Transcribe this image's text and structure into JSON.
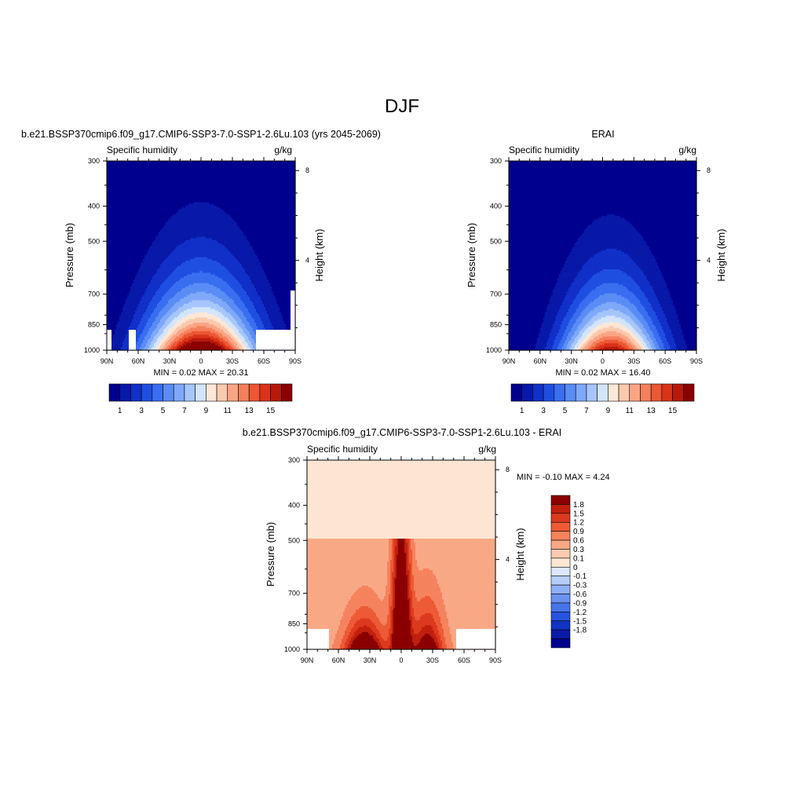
{
  "figure": {
    "title": "DJF"
  },
  "colors": {
    "abs_palette": [
      "#00008f",
      "#0818a8",
      "#1030c8",
      "#1f4fe0",
      "#3a6ef0",
      "#5a8cf5",
      "#7fa9f8",
      "#a6c6fb",
      "#d3e5fc",
      "#fde7d7",
      "#fbc9ad",
      "#f9a585",
      "#f5805c",
      "#ec5734",
      "#d8341a",
      "#b8190b",
      "#8b0000"
    ],
    "diff_palette": [
      "#00008f",
      "#0a1aa6",
      "#1233c2",
      "#2553dc",
      "#4675ea",
      "#6a93f0",
      "#90b0f6",
      "#b6cdfa",
      "#dbe7fc",
      "#fde5d3",
      "#fbcbb0",
      "#f9a886",
      "#f5835e",
      "#ed5a36",
      "#dc3a1e",
      "#c0200d",
      "#8b0000"
    ]
  },
  "chart_data": [
    {
      "id": "model",
      "type": "heatmap",
      "title": "b.e21.BSSP370cmip6.f09_g17.CMIP6-SSP3-7.0-SSP1-2.6Lu.103 (yrs 2045-2069)",
      "left_label": "Specific humidity",
      "right_label": "g/kg",
      "xlabel": "",
      "ylabel": "Pressure (mb)",
      "y2label": "Height (km)",
      "x_ticks": [
        "90N",
        "60N",
        "30N",
        "0",
        "30S",
        "60S",
        "90S"
      ],
      "y_ticks": [
        "300",
        "400",
        "500",
        "700",
        "850",
        "1000"
      ],
      "y2_ticks": [
        "8",
        "4"
      ],
      "ylim": [
        1000,
        300
      ],
      "stats": "MIN =   0.02  MAX =  20.31",
      "min": 0.02,
      "max": 20.31,
      "peak_lat": 0,
      "colorbar_labels": [
        "1",
        "3",
        "5",
        "7",
        "9",
        "11",
        "13",
        "15"
      ],
      "colorbar_levels": [
        1,
        2,
        3,
        4,
        5,
        6,
        7,
        8,
        9,
        10,
        11,
        12,
        13,
        14,
        15,
        16
      ]
    },
    {
      "id": "obs",
      "type": "heatmap",
      "title": "ERAI",
      "left_label": "Specific humidity",
      "right_label": "g/kg",
      "xlabel": "",
      "ylabel": "Pressure (mb)",
      "y2label": "Height (km)",
      "x_ticks": [
        "90N",
        "60N",
        "30N",
        "0",
        "30S",
        "60S",
        "90S"
      ],
      "y_ticks": [
        "300",
        "400",
        "500",
        "700",
        "850",
        "1000"
      ],
      "y2_ticks": [
        "8",
        "4"
      ],
      "ylim": [
        1000,
        300
      ],
      "stats": "MIN =   0.02  MAX =  16.40",
      "min": 0.02,
      "max": 16.4,
      "peak_lat": -8,
      "colorbar_labels": [
        "1",
        "3",
        "5",
        "7",
        "9",
        "11",
        "13",
        "15"
      ],
      "colorbar_levels": [
        1,
        2,
        3,
        4,
        5,
        6,
        7,
        8,
        9,
        10,
        11,
        12,
        13,
        14,
        15,
        16
      ]
    },
    {
      "id": "diff",
      "type": "heatmap",
      "title": "b.e21.BSSP370cmip6.f09_g17.CMIP6-SSP3-7.0-SSP1-2.6Lu.103 - ERAI",
      "left_label": "Specific humidity",
      "right_label": "g/kg",
      "xlabel": "",
      "ylabel": "Pressure (mb)",
      "y2label": "Height (km)",
      "x_ticks": [
        "90N",
        "60N",
        "30N",
        "0",
        "30S",
        "60S",
        "90S"
      ],
      "y_ticks": [
        "300",
        "400",
        "500",
        "700",
        "850",
        "1000"
      ],
      "y2_ticks": [
        "8",
        "4"
      ],
      "ylim": [
        1000,
        300
      ],
      "stats": "MIN =  -0.10  MAX =   4.24",
      "min": -0.1,
      "max": 4.24,
      "colorbar_labels": [
        "1.8",
        "1.5",
        "1.2",
        "0.9",
        "0.6",
        "0.3",
        "0.1",
        "0",
        "-0.1",
        "-0.3",
        "-0.6",
        "-0.9",
        "-1.2",
        "-1.5",
        "-1.8"
      ]
    }
  ]
}
